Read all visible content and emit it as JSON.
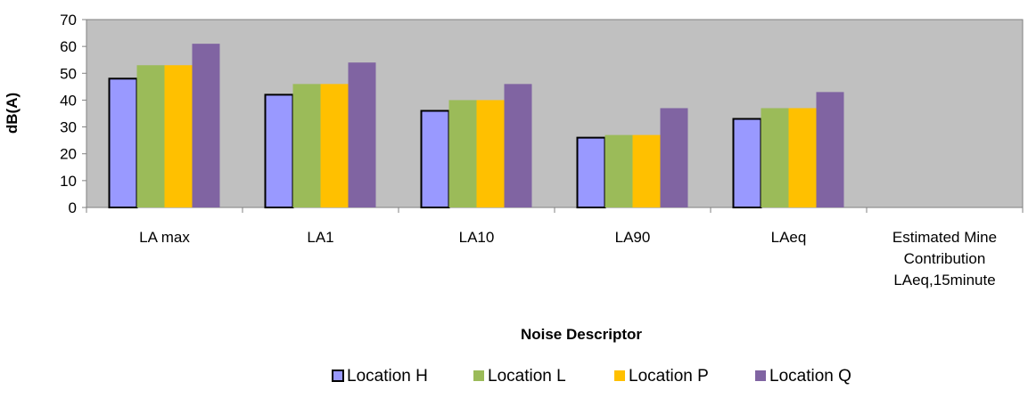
{
  "chart_data": {
    "type": "bar",
    "title": "",
    "xlabel": "Noise Descriptor",
    "ylabel": "dB(A)",
    "ylim": [
      0,
      70
    ],
    "yticks": [
      0,
      10,
      20,
      30,
      40,
      50,
      60,
      70
    ],
    "grid": false,
    "legend_position": "bottom",
    "categories": [
      [
        "LA max"
      ],
      [
        "LA1"
      ],
      [
        "LA10"
      ],
      [
        "LA90"
      ],
      [
        "LAeq"
      ],
      [
        "Estimated Mine",
        "Contribution",
        "LAeq,15minute"
      ]
    ],
    "series": [
      {
        "name": "Location H",
        "color": "#9999ff",
        "outlined": true,
        "values": [
          48,
          42,
          36,
          26,
          33,
          null
        ]
      },
      {
        "name": "Location L",
        "color": "#9bbb59",
        "outlined": false,
        "values": [
          53,
          46,
          40,
          27,
          37,
          null
        ]
      },
      {
        "name": "Location P",
        "color": "#ffc000",
        "outlined": false,
        "values": [
          53,
          46,
          40,
          27,
          37,
          null
        ]
      },
      {
        "name": "Location Q",
        "color": "#8064a2",
        "outlined": false,
        "values": [
          61,
          54,
          46,
          37,
          43,
          null
        ]
      }
    ],
    "plot_background": "#c0c0c0"
  }
}
